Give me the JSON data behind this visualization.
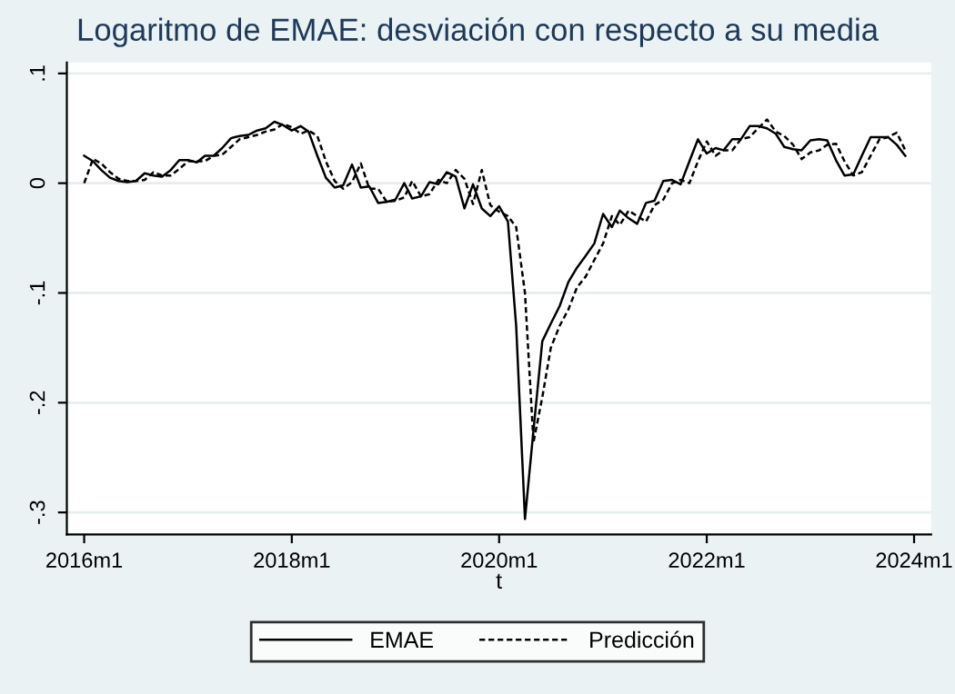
{
  "chart_data": {
    "type": "line",
    "title": "Logaritmo de EMAE: desviación con respecto a su media",
    "xlabel": "t",
    "x": [
      "2016-01",
      "2016-02",
      "2016-03",
      "2016-04",
      "2016-05",
      "2016-06",
      "2016-07",
      "2016-08",
      "2016-09",
      "2016-10",
      "2016-11",
      "2016-12",
      "2017-01",
      "2017-02",
      "2017-03",
      "2017-04",
      "2017-05",
      "2017-06",
      "2017-07",
      "2017-08",
      "2017-09",
      "2017-10",
      "2017-11",
      "2017-12",
      "2018-01",
      "2018-02",
      "2018-03",
      "2018-04",
      "2018-05",
      "2018-06",
      "2018-07",
      "2018-08",
      "2018-09",
      "2018-10",
      "2018-11",
      "2018-12",
      "2019-01",
      "2019-02",
      "2019-03",
      "2019-04",
      "2019-05",
      "2019-06",
      "2019-07",
      "2019-08",
      "2019-09",
      "2019-10",
      "2019-11",
      "2019-12",
      "2020-01",
      "2020-02",
      "2020-03",
      "2020-04",
      "2020-05",
      "2020-06",
      "2020-07",
      "2020-08",
      "2020-09",
      "2020-10",
      "2020-11",
      "2020-12",
      "2021-01",
      "2021-02",
      "2021-03",
      "2021-04",
      "2021-05",
      "2021-06",
      "2021-07",
      "2021-08",
      "2021-09",
      "2021-10",
      "2021-11",
      "2021-12",
      "2022-01",
      "2022-02",
      "2022-03",
      "2022-04",
      "2022-05",
      "2022-06",
      "2022-07",
      "2022-08",
      "2022-09",
      "2022-10",
      "2022-11",
      "2022-12",
      "2023-01",
      "2023-02",
      "2023-03",
      "2023-04",
      "2023-05",
      "2023-06",
      "2023-07",
      "2023-08",
      "2023-09",
      "2023-10",
      "2023-11",
      "2023-12"
    ],
    "series": [
      {
        "name": "EMAE",
        "color": "#000000",
        "line_style": "solid",
        "values": [
          0.025,
          0.02,
          0.012,
          0.005,
          0.002,
          0.001,
          0.002,
          0.009,
          0.007,
          0.006,
          0.012,
          0.021,
          0.021,
          0.019,
          0.025,
          0.025,
          0.032,
          0.041,
          0.043,
          0.044,
          0.048,
          0.05,
          0.056,
          0.053,
          0.048,
          0.052,
          0.047,
          0.025,
          0.005,
          -0.004,
          -0.002,
          0.017,
          -0.004,
          -0.003,
          -0.018,
          -0.017,
          -0.015,
          0.0,
          -0.014,
          -0.012,
          0.001,
          -0.001,
          0.01,
          0.006,
          -0.023,
          -0.001,
          -0.023,
          -0.03,
          -0.021,
          -0.035,
          -0.13,
          -0.306,
          -0.225,
          -0.144,
          -0.128,
          -0.112,
          -0.09,
          -0.077,
          -0.066,
          -0.055,
          -0.028,
          -0.04,
          -0.025,
          -0.032,
          -0.037,
          -0.018,
          -0.016,
          0.002,
          0.003,
          -0.001,
          0.02,
          0.04,
          0.027,
          0.032,
          0.03,
          0.04,
          0.04,
          0.052,
          0.052,
          0.05,
          0.045,
          0.033,
          0.031,
          0.03,
          0.039,
          0.04,
          0.039,
          0.021,
          0.007,
          0.008,
          0.025,
          0.042,
          0.042,
          0.042,
          0.035,
          0.025
        ]
      },
      {
        "name": "Predicción",
        "color": "#000000",
        "line_style": "dashed",
        "values": [
          0.0,
          0.022,
          0.018,
          0.01,
          0.004,
          0.002,
          0.002,
          0.003,
          0.01,
          0.007,
          0.007,
          0.013,
          0.02,
          0.02,
          0.02,
          0.025,
          0.026,
          0.033,
          0.04,
          0.042,
          0.044,
          0.047,
          0.049,
          0.054,
          0.051,
          0.045,
          0.048,
          0.043,
          0.02,
          0.002,
          -0.005,
          0.001,
          0.018,
          -0.005,
          -0.005,
          -0.017,
          -0.016,
          -0.013,
          0.002,
          -0.012,
          -0.01,
          0.003,
          0.0,
          0.012,
          0.004,
          -0.019,
          0.012,
          -0.02,
          -0.026,
          -0.03,
          -0.04,
          -0.1,
          -0.236,
          -0.195,
          -0.15,
          -0.13,
          -0.115,
          -0.095,
          -0.085,
          -0.07,
          -0.055,
          -0.03,
          -0.038,
          -0.025,
          -0.03,
          -0.035,
          -0.02,
          -0.015,
          0.0,
          0.003,
          0.0,
          0.02,
          0.038,
          0.025,
          0.03,
          0.03,
          0.04,
          0.042,
          0.05,
          0.058,
          0.047,
          0.043,
          0.035,
          0.022,
          0.028,
          0.03,
          0.035,
          0.036,
          0.02,
          0.007,
          0.01,
          0.025,
          0.04,
          0.042,
          0.046,
          0.03
        ]
      }
    ],
    "xlim": [
      "2015-11",
      "2024-03"
    ],
    "xticks": [
      {
        "value": "2016-01",
        "label": "2016m1"
      },
      {
        "value": "2018-01",
        "label": "2018m1"
      },
      {
        "value": "2020-01",
        "label": "2020m1"
      },
      {
        "value": "2022-01",
        "label": "2022m1"
      },
      {
        "value": "2024-01",
        "label": "2024m1"
      }
    ],
    "ylim": [
      -0.32,
      0.11
    ],
    "yticks": [
      {
        "value": -0.3,
        "label": "-.3"
      },
      {
        "value": -0.2,
        "label": "-.2"
      },
      {
        "value": -0.1,
        "label": "-.1"
      },
      {
        "value": 0,
        "label": "0"
      },
      {
        "value": 0.1,
        "label": ".1"
      }
    ],
    "grid": "y",
    "legend": "bottom"
  }
}
